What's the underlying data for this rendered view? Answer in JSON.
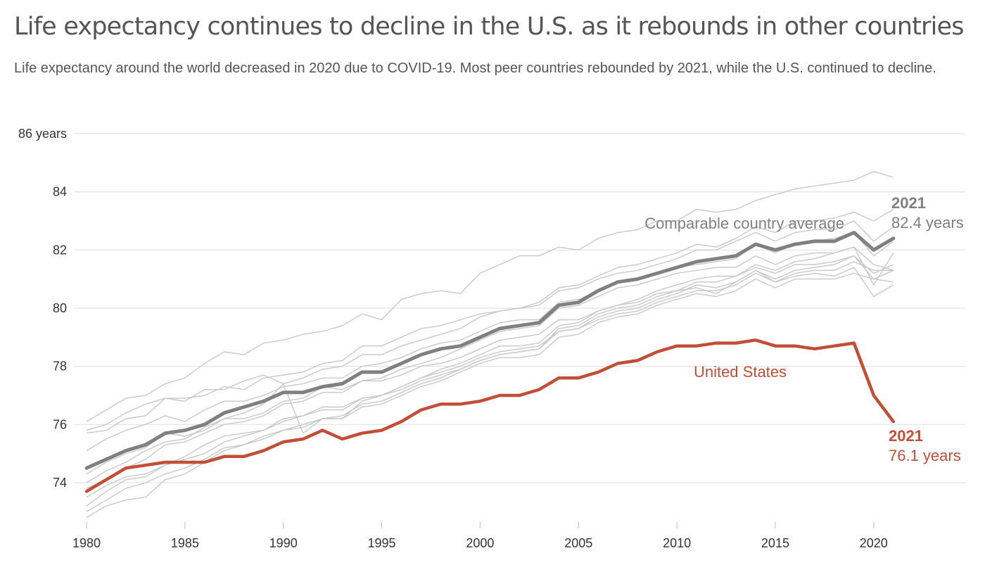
{
  "header": {
    "title": "Life expectancy continues to decline in the U.S. as it rebounds in other countries",
    "subtitle": "Life expectancy around the world decreased in 2020 due to COVID-19. Most peer countries rebounded by 2021, while the U.S. continued to decline."
  },
  "colors": {
    "us": "#c24e37",
    "average": "#808080",
    "peers": "#c8c8c8",
    "grid": "#e3e3e3",
    "text": "#555555"
  },
  "chart_data": {
    "type": "line",
    "title": "Life expectancy continues to decline in the U.S. as it rebounds in other countries",
    "xlabel": "",
    "ylabel": "years",
    "xlim": [
      1980,
      2021
    ],
    "ylim": [
      73,
      86
    ],
    "grid": true,
    "x_ticks": [
      1980,
      1985,
      1990,
      1995,
      2000,
      2005,
      2010,
      2015,
      2020
    ],
    "x_tick_labels": [
      "1980",
      "1985",
      "1990",
      "1995",
      "2000",
      "2005",
      "2010",
      "2015",
      "2020"
    ],
    "y_ticks": [
      74,
      76,
      78,
      80,
      82,
      84,
      86
    ],
    "y_tick_labels": [
      "74",
      "76",
      "78",
      "80",
      "82",
      "84",
      "86 years"
    ],
    "x": [
      1980,
      1981,
      1982,
      1983,
      1984,
      1985,
      1986,
      1987,
      1988,
      1989,
      1990,
      1991,
      1992,
      1993,
      1994,
      1995,
      1996,
      1997,
      1998,
      1999,
      2000,
      2001,
      2002,
      2003,
      2004,
      2005,
      2006,
      2007,
      2008,
      2009,
      2010,
      2011,
      2012,
      2013,
      2014,
      2015,
      2016,
      2017,
      2018,
      2019,
      2020,
      2021
    ],
    "series": [
      {
        "name": "United States",
        "label": "United States",
        "end_year": "2021",
        "end_value_label": "76.1 years",
        "values": [
          73.7,
          74.1,
          74.5,
          74.6,
          74.7,
          74.7,
          74.7,
          74.9,
          74.9,
          75.1,
          75.4,
          75.5,
          75.8,
          75.5,
          75.7,
          75.8,
          76.1,
          76.5,
          76.7,
          76.7,
          76.8,
          77.0,
          77.0,
          77.2,
          77.6,
          77.6,
          77.8,
          78.1,
          78.2,
          78.5,
          78.7,
          78.7,
          78.8,
          78.8,
          78.9,
          78.7,
          78.7,
          78.6,
          78.7,
          78.8,
          77.0,
          76.1
        ]
      },
      {
        "name": "Comparable country average",
        "label": "Comparable country average",
        "end_year": "2021",
        "end_value_label": "82.4 years",
        "values": [
          74.5,
          74.8,
          75.1,
          75.3,
          75.7,
          75.8,
          76.0,
          76.4,
          76.6,
          76.8,
          77.1,
          77.1,
          77.3,
          77.4,
          77.8,
          77.8,
          78.1,
          78.4,
          78.6,
          78.7,
          79.0,
          79.3,
          79.4,
          79.5,
          80.1,
          80.2,
          80.6,
          80.9,
          81.0,
          81.2,
          81.4,
          81.6,
          81.7,
          81.8,
          82.2,
          82.0,
          82.2,
          82.3,
          82.3,
          82.6,
          82.0,
          82.4
        ]
      }
    ],
    "peer_series": [
      {
        "values": [
          76.1,
          76.5,
          76.9,
          77.0,
          77.4,
          77.6,
          78.1,
          78.5,
          78.4,
          78.8,
          78.9,
          79.1,
          79.2,
          79.4,
          79.8,
          79.6,
          80.3,
          80.5,
          80.6,
          80.5,
          81.2,
          81.5,
          81.8,
          81.8,
          82.1,
          82.0,
          82.4,
          82.6,
          82.7,
          83.0,
          83.0,
          83.4,
          83.3,
          83.4,
          83.7,
          83.9,
          84.1,
          84.2,
          84.3,
          84.4,
          84.7,
          84.5
        ]
      },
      {
        "values": [
          75.8,
          76.0,
          76.4,
          76.7,
          76.9,
          76.9,
          77.0,
          77.3,
          77.2,
          77.6,
          77.7,
          77.8,
          78.1,
          78.2,
          78.7,
          78.7,
          79.0,
          79.3,
          79.4,
          79.6,
          79.8,
          79.9,
          80.0,
          80.2,
          80.7,
          80.8,
          81.1,
          81.4,
          81.5,
          81.7,
          81.9,
          82.2,
          82.1,
          82.4,
          82.8,
          82.6,
          83.0,
          83.0,
          83.1,
          83.3,
          83.0,
          83.4
        ]
      },
      {
        "values": [
          75.7,
          75.8,
          76.2,
          76.3,
          76.9,
          76.8,
          77.2,
          77.2,
          77.5,
          77.7,
          77.4,
          77.6,
          77.9,
          78.0,
          78.4,
          78.4,
          78.7,
          78.9,
          79.1,
          79.3,
          79.7,
          79.9,
          80.0,
          80.1,
          80.6,
          80.7,
          81.0,
          81.2,
          81.3,
          81.5,
          81.7,
          82.0,
          82.0,
          82.3,
          82.6,
          82.3,
          82.6,
          82.7,
          82.7,
          83.0,
          82.3,
          82.8
        ]
      },
      {
        "values": [
          75.1,
          75.5,
          75.8,
          76.0,
          76.3,
          76.1,
          76.5,
          76.8,
          76.8,
          77.0,
          77.3,
          77.4,
          77.6,
          77.6,
          78.0,
          78.1,
          78.3,
          78.6,
          78.8,
          78.9,
          79.2,
          79.5,
          79.6,
          79.6,
          80.2,
          80.3,
          80.6,
          80.9,
          81.0,
          81.2,
          81.4,
          81.5,
          81.6,
          81.7,
          82.2,
          81.9,
          82.2,
          82.3,
          82.4,
          82.6,
          81.8,
          82.3
        ]
      },
      {
        "values": [
          74.3,
          74.7,
          75.0,
          75.2,
          75.7,
          75.6,
          75.8,
          76.2,
          76.4,
          76.7,
          77.4,
          75.7,
          76.2,
          76.2,
          76.8,
          77.0,
          77.3,
          77.6,
          77.9,
          78.1,
          78.4,
          78.7,
          78.7,
          78.8,
          79.4,
          79.5,
          79.9,
          80.1,
          80.3,
          80.6,
          80.8,
          81.0,
          81.1,
          81.1,
          81.5,
          81.3,
          81.6,
          81.7,
          81.9,
          82.1,
          81.5,
          81.3
        ]
      },
      {
        "values": [
          74.0,
          74.4,
          74.7,
          75.1,
          75.4,
          75.5,
          75.9,
          76.2,
          76.2,
          76.4,
          76.8,
          76.9,
          77.3,
          77.2,
          77.5,
          77.5,
          77.7,
          78.0,
          78.1,
          78.3,
          78.6,
          78.9,
          79.0,
          79.1,
          79.6,
          79.6,
          79.9,
          80.1,
          80.2,
          80.5,
          80.6,
          80.9,
          80.9,
          81.1,
          81.4,
          81.2,
          81.5,
          81.5,
          81.6,
          81.8,
          81.2,
          81.5
        ]
      },
      {
        "values": [
          73.8,
          74.1,
          74.5,
          74.8,
          75.3,
          75.4,
          75.7,
          76.0,
          76.1,
          76.3,
          76.7,
          76.8,
          77.1,
          77.1,
          77.5,
          77.6,
          77.9,
          78.1,
          78.3,
          78.6,
          78.9,
          79.2,
          79.3,
          79.4,
          80.0,
          80.1,
          80.4,
          80.7,
          80.8,
          81.0,
          81.2,
          81.3,
          81.4,
          81.4,
          81.8,
          81.5,
          81.8,
          81.9,
          81.9,
          82.1,
          80.8,
          81.9
        ]
      },
      {
        "values": [
          73.5,
          73.9,
          74.2,
          74.3,
          74.6,
          74.8,
          75.0,
          75.4,
          75.6,
          75.8,
          76.1,
          76.3,
          76.5,
          76.5,
          76.9,
          77.0,
          77.3,
          77.6,
          77.8,
          78.0,
          78.3,
          78.5,
          78.6,
          78.7,
          79.2,
          79.3,
          79.6,
          79.8,
          79.9,
          80.2,
          80.4,
          80.6,
          80.6,
          80.8,
          81.2,
          80.9,
          81.2,
          81.3,
          81.3,
          81.6,
          81.3,
          81.3
        ]
      },
      {
        "values": [
          73.2,
          73.7,
          74.1,
          74.2,
          74.6,
          74.9,
          75.3,
          75.6,
          75.7,
          75.8,
          76.2,
          76.3,
          76.6,
          76.6,
          76.9,
          77.0,
          77.2,
          77.5,
          77.7,
          77.9,
          78.2,
          78.4,
          78.5,
          78.6,
          79.3,
          79.4,
          79.8,
          80.0,
          80.1,
          80.4,
          80.6,
          80.7,
          80.5,
          80.9,
          81.3,
          80.9,
          81.1,
          81.2,
          81.1,
          81.4,
          80.4,
          80.8
        ]
      },
      {
        "values": [
          73.0,
          73.4,
          73.8,
          74.0,
          74.3,
          74.5,
          74.8,
          75.2,
          75.3,
          75.5,
          75.8,
          75.9,
          76.2,
          76.2,
          76.6,
          76.7,
          77.0,
          77.3,
          77.5,
          77.8,
          78.1,
          78.3,
          78.3,
          78.4,
          79.0,
          79.1,
          79.5,
          79.7,
          79.8,
          80.1,
          80.3,
          80.5,
          80.4,
          80.6,
          81.0,
          80.7,
          81.0,
          81.0,
          81.0,
          81.2,
          81.0,
          80.9
        ]
      },
      {
        "values": [
          72.8,
          73.2,
          73.4,
          73.5,
          74.1,
          74.3,
          74.7,
          75.1,
          75.3,
          75.6,
          75.8,
          76.0,
          76.2,
          76.3,
          76.7,
          76.8,
          77.1,
          77.4,
          77.6,
          77.9,
          78.2,
          78.4,
          78.5,
          78.6,
          79.2,
          79.3,
          79.7,
          79.9,
          80.0,
          80.3,
          80.5,
          80.8,
          80.7,
          80.9,
          81.3,
          81.0,
          81.3,
          81.4,
          81.5,
          81.8,
          81.0,
          81.3
        ]
      }
    ]
  }
}
